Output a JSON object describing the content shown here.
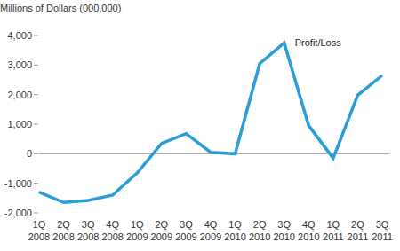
{
  "chart_data": {
    "type": "line",
    "y_label": "Millions of Dollars (000,000)",
    "categories": [
      "1Q 2008",
      "2Q 2008",
      "3Q 2008",
      "4Q 2008",
      "1Q 2009",
      "2Q 2009",
      "3Q 2009",
      "4Q 2009",
      "1Q 2010",
      "2Q 2010",
      "3Q 2010",
      "4Q 2010",
      "1Q 2011",
      "2Q 2011",
      "3Q 2011"
    ],
    "series": [
      {
        "name": "Profit/Loss",
        "color": "#2b9ed8",
        "values": [
          -1300,
          -1650,
          -1580,
          -1400,
          -650,
          350,
          680,
          50,
          0,
          3050,
          3750,
          950,
          -150,
          1980,
          2650
        ]
      }
    ],
    "ylim": [
      -2000,
      4000
    ],
    "yticks": [
      {
        "value": -2000,
        "label": "-2,000"
      },
      {
        "value": -1000,
        "label": "-1,000"
      },
      0,
      {
        "value": 1000,
        "label": "1,000"
      },
      {
        "value": 2000,
        "label": "2,000"
      },
      {
        "value": 3000,
        "label": "3,000"
      },
      {
        "value": 4000,
        "label": "4,000"
      }
    ],
    "grid": false
  }
}
